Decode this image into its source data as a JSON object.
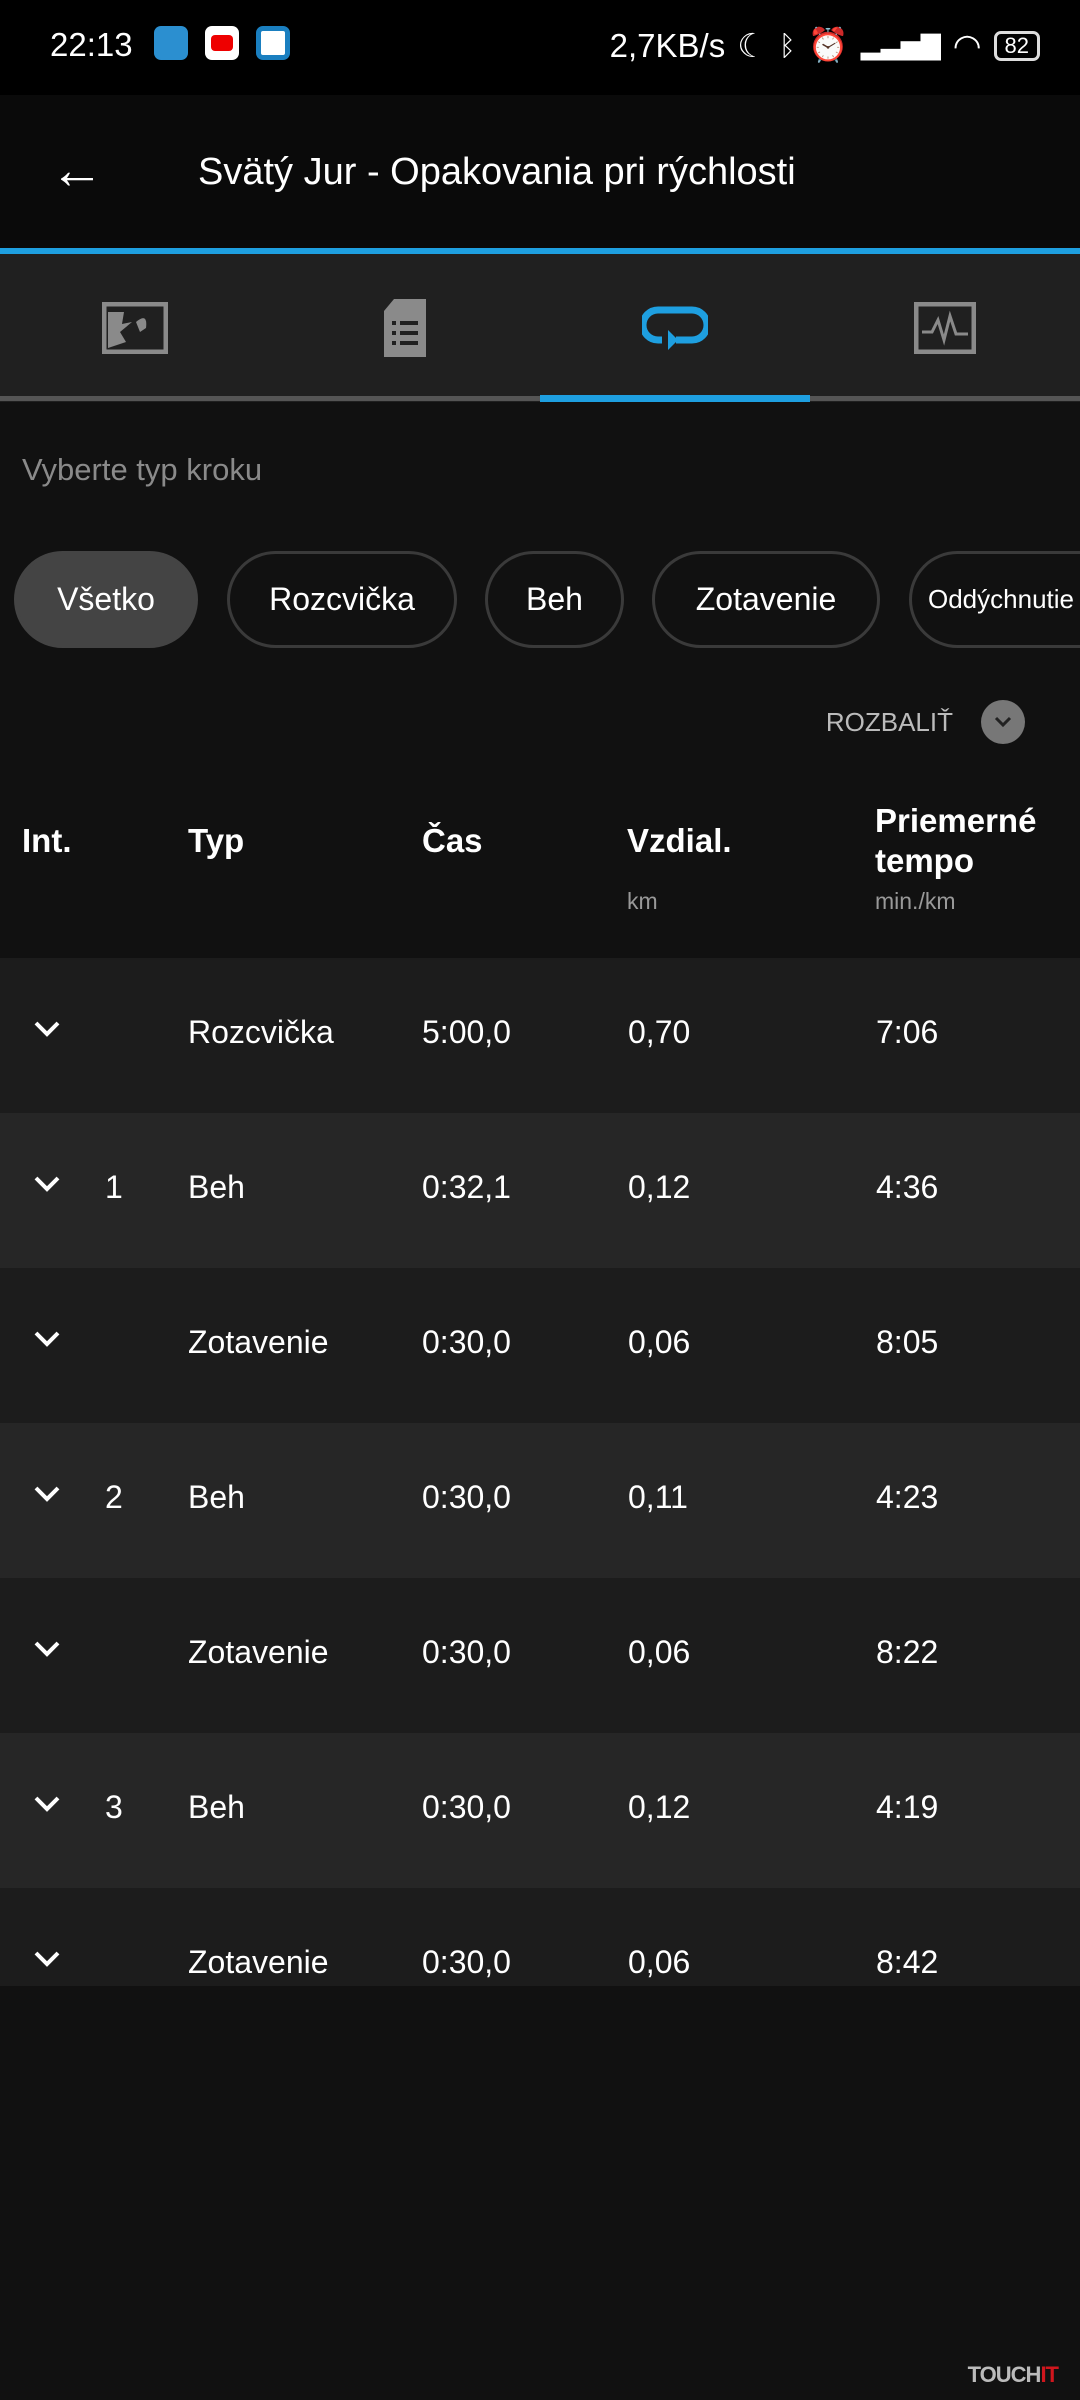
{
  "status_bar": {
    "time": "22:13",
    "net_speed": "2,7KB/s",
    "battery": "82"
  },
  "header": {
    "title": "Svätý Jur - Opakovania pri rýchlosti"
  },
  "tabs": [
    {
      "icon": "map-icon"
    },
    {
      "icon": "details-list-icon"
    },
    {
      "icon": "laps-repeat-icon",
      "active": true
    },
    {
      "icon": "chart-icon"
    }
  ],
  "accent": "#1e9fe0",
  "filter": {
    "hint": "Vyberte typ kroku",
    "chips": [
      "Všetko",
      "Rozcvička",
      "Beh",
      "Zotavenie",
      "Oddýchnutie"
    ],
    "selected": "Všetko"
  },
  "expand_label": "ROZBALIŤ",
  "table": {
    "headers": {
      "int": "Int.",
      "type": "Typ",
      "time": "Čas",
      "dist": "Vzdial.",
      "dist_unit": "km",
      "pace_1": "Priemerné",
      "pace_2": "tempo",
      "pace_unit": "min./km"
    },
    "rows": [
      {
        "int": "",
        "type": "Rozcvička",
        "time": "5:00,0",
        "dist": "0,70",
        "pace": "7:06"
      },
      {
        "int": "1",
        "type": "Beh",
        "time": "0:32,1",
        "dist": "0,12",
        "pace": "4:36"
      },
      {
        "int": "",
        "type": "Zotavenie",
        "time": "0:30,0",
        "dist": "0,06",
        "pace": "8:05"
      },
      {
        "int": "2",
        "type": "Beh",
        "time": "0:30,0",
        "dist": "0,11",
        "pace": "4:23"
      },
      {
        "int": "",
        "type": "Zotavenie",
        "time": "0:30,0",
        "dist": "0,06",
        "pace": "8:22"
      },
      {
        "int": "3",
        "type": "Beh",
        "time": "0:30,0",
        "dist": "0,12",
        "pace": "4:19"
      },
      {
        "int": "",
        "type": "Zotavenie",
        "time": "0:30,0",
        "dist": "0,06",
        "pace": "8:42"
      }
    ]
  },
  "watermark": {
    "a": "TOUCH",
    "b": "IT"
  }
}
